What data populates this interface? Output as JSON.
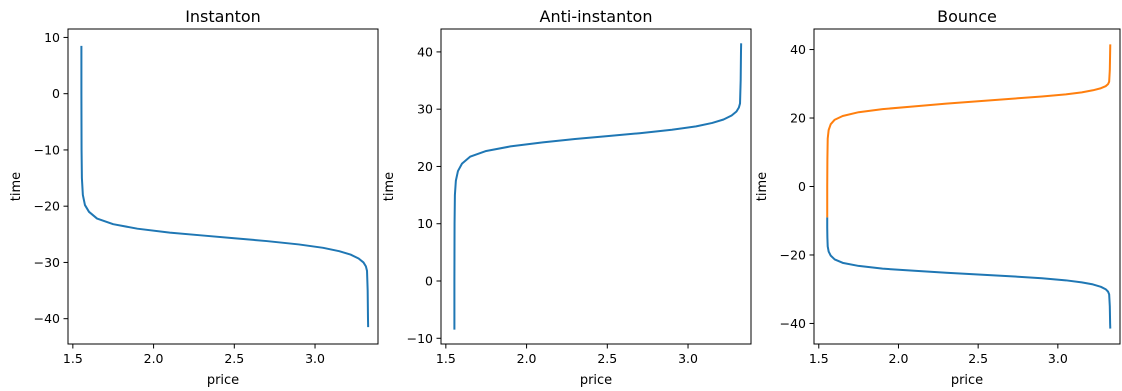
{
  "chart_data": [
    {
      "type": "line",
      "title": "Instanton",
      "xlabel": "price",
      "ylabel": "time",
      "xlim": [
        1.47,
        3.39
      ],
      "ylim": [
        -44.5,
        11.5
      ],
      "xticks": [
        1.5,
        2.0,
        2.5,
        3.0
      ],
      "xtick_labels": [
        "1.5",
        "2.0",
        "2.5",
        "3.0"
      ],
      "yticks": [
        10,
        0,
        -10,
        -20,
        -30,
        -40
      ],
      "ytick_labels": [
        "10",
        "0",
        "−10",
        "−20",
        "−30",
        "−40"
      ],
      "grid": false,
      "series": [
        {
          "color": "#1f77b4",
          "x": [
            1.553,
            1.553,
            1.554,
            1.556,
            1.562,
            1.575,
            1.6,
            1.65,
            1.75,
            1.9,
            2.1,
            2.3,
            2.5,
            2.7,
            2.9,
            3.05,
            3.15,
            3.22,
            3.27,
            3.3,
            3.315,
            3.322,
            3.326,
            3.328,
            3.329
          ],
          "y": [
            8.5,
            0,
            -10,
            -15,
            -18,
            -19.8,
            -21,
            -22.2,
            -23.2,
            -24,
            -24.7,
            -25.2,
            -25.7,
            -26.2,
            -26.8,
            -27.4,
            -28,
            -28.6,
            -29.3,
            -30,
            -30.7,
            -31.5,
            -35,
            -40,
            -41.5
          ]
        }
      ]
    },
    {
      "type": "line",
      "title": "Anti-instanton",
      "xlabel": "price",
      "ylabel": "time",
      "xlim": [
        1.47,
        3.39
      ],
      "ylim": [
        -11,
        44
      ],
      "xticks": [
        1.5,
        2.0,
        2.5,
        3.0
      ],
      "xtick_labels": [
        "1.5",
        "2.0",
        "2.5",
        "3.0"
      ],
      "yticks": [
        40,
        30,
        20,
        10,
        0,
        -10
      ],
      "ytick_labels": [
        "40",
        "30",
        "20",
        "10",
        "0",
        "−10"
      ],
      "grid": false,
      "series": [
        {
          "color": "#1f77b4",
          "x": [
            1.553,
            1.553,
            1.554,
            1.556,
            1.562,
            1.575,
            1.6,
            1.65,
            1.75,
            1.9,
            2.1,
            2.3,
            2.5,
            2.7,
            2.9,
            3.05,
            3.15,
            3.22,
            3.27,
            3.3,
            3.315,
            3.322,
            3.326,
            3.328,
            3.329
          ],
          "y": [
            -8.5,
            0,
            10,
            15,
            17.5,
            19.2,
            20.5,
            21.7,
            22.7,
            23.5,
            24.2,
            24.8,
            25.3,
            25.8,
            26.4,
            27,
            27.6,
            28.2,
            28.9,
            29.6,
            30.3,
            31,
            35,
            40,
            41.5
          ]
        }
      ]
    },
    {
      "type": "line",
      "title": "Bounce",
      "xlabel": "price",
      "ylabel": "time",
      "xlim": [
        1.47,
        3.39
      ],
      "ylim": [
        -46,
        46
      ],
      "xticks": [
        1.5,
        2.0,
        2.5,
        3.0
      ],
      "xtick_labels": [
        "1.5",
        "2.0",
        "2.5",
        "3.0"
      ],
      "yticks": [
        40,
        20,
        0,
        -20,
        -40
      ],
      "ytick_labels": [
        "40",
        "20",
        "0",
        "−20",
        "−40"
      ],
      "grid": false,
      "series": [
        {
          "color": "#1f77b4",
          "x": [
            1.553,
            1.553,
            1.554,
            1.556,
            1.562,
            1.575,
            1.6,
            1.65,
            1.75,
            1.9,
            2.1,
            2.3,
            2.5,
            2.7,
            2.9,
            3.05,
            3.15,
            3.22,
            3.27,
            3.3,
            3.315,
            3.322,
            3.326,
            3.328,
            3.329
          ],
          "y": [
            -9,
            -12,
            -15,
            -17.5,
            -19,
            -20.2,
            -21.3,
            -22.3,
            -23.2,
            -24,
            -24.6,
            -25.2,
            -25.7,
            -26.2,
            -26.8,
            -27.4,
            -28,
            -28.6,
            -29.3,
            -30,
            -30.7,
            -31.5,
            -35,
            -40,
            -41.5
          ]
        },
        {
          "color": "#ff7f0e",
          "x": [
            1.553,
            1.553,
            1.554,
            1.556,
            1.562,
            1.575,
            1.6,
            1.65,
            1.75,
            1.9,
            2.1,
            2.3,
            2.5,
            2.7,
            2.9,
            3.05,
            3.15,
            3.22,
            3.27,
            3.3,
            3.315,
            3.322,
            3.326,
            3.328,
            3.329
          ],
          "y": [
            -9,
            0,
            8,
            14,
            16.5,
            18.2,
            19.5,
            20.6,
            21.7,
            22.6,
            23.4,
            24.2,
            24.9,
            25.6,
            26.3,
            26.9,
            27.5,
            28.1,
            28.7,
            29.3,
            29.9,
            30.6,
            34,
            39,
            41.5
          ]
        }
      ]
    }
  ]
}
